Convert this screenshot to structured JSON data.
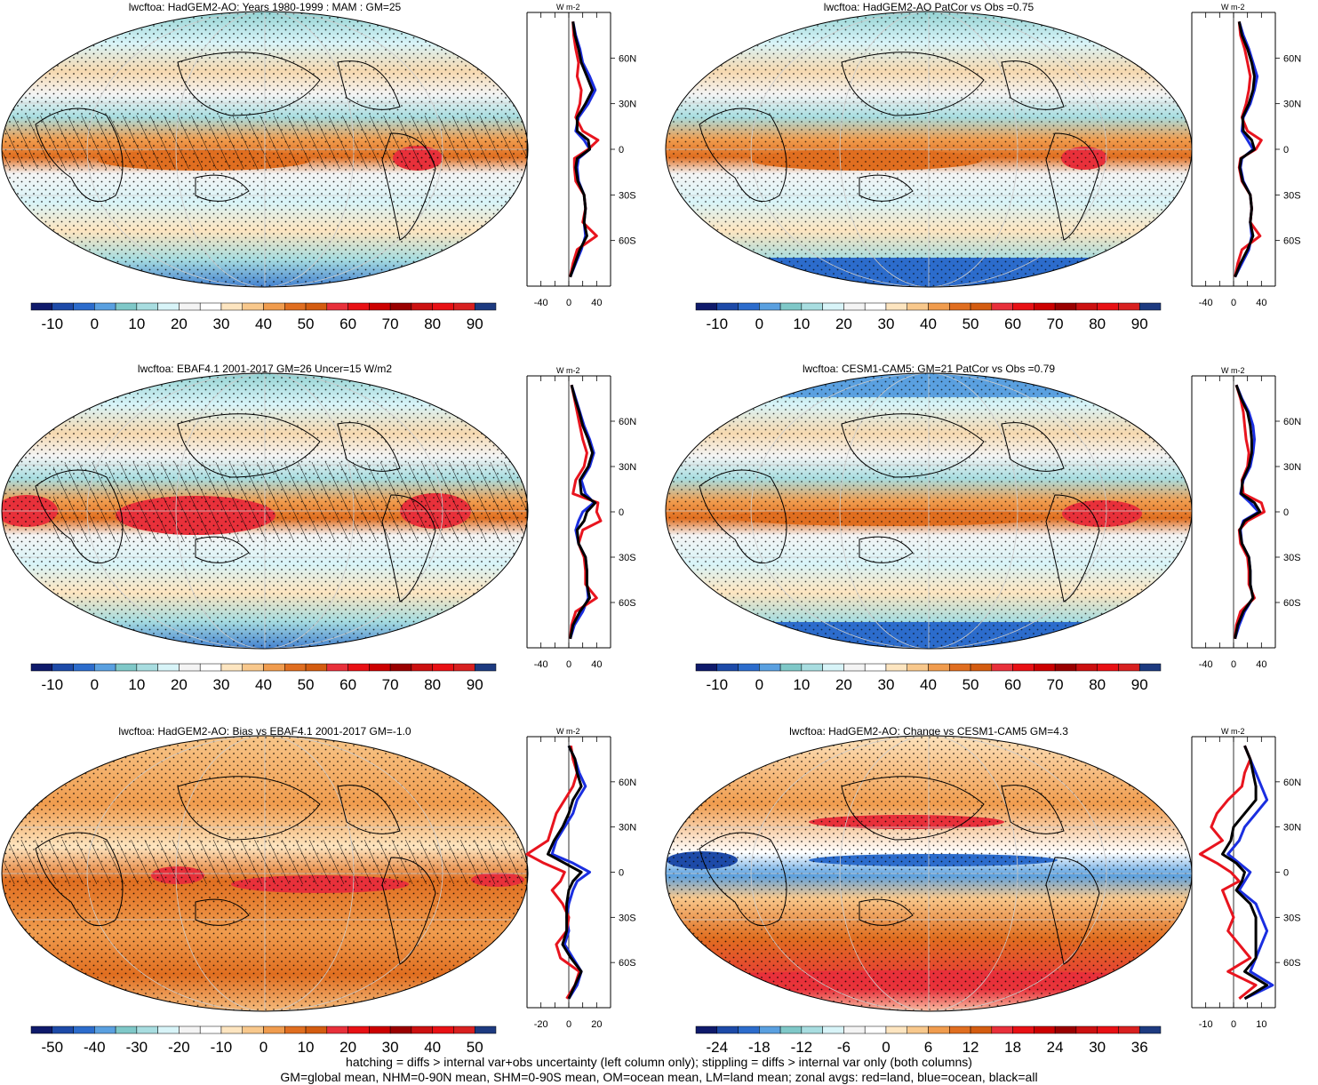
{
  "footnotes": {
    "line1": "hatching = diffs > internal var+obs uncertainty (left column only); stippling = diffs > internal var only (both columns)",
    "line2": "GM=global mean, NHM=0-90N mean, SHM=0-90S mean, OM=ocean mean, LM=land mean; zonal avgs: red=land, blue=ocean, black=all"
  },
  "colors": {
    "land": "#e8141e",
    "ocean": "#1a2ee0",
    "all": "#000000"
  },
  "chart_data": [
    {
      "type": "heatmap",
      "title": "lwcftoa: HadGEM2-AO: Years 1980-1999 : MAM : GM=25",
      "colorbar_ticks": [
        "-10",
        "0",
        "10",
        "20",
        "30",
        "40",
        "50",
        "60",
        "70",
        "80",
        "90"
      ],
      "colorbar_colors": [
        "#0f1a6b",
        "#1d4aa8",
        "#2c6ccc",
        "#5aa0e0",
        "#7fc8c8",
        "#a8dde0",
        "#d8f4f8",
        "#f4f4f4",
        "#ffffff",
        "#fde5c0",
        "#f8c88c",
        "#f09c4e",
        "#e06e20",
        "#d45c10",
        "#e8303a",
        "#e81014",
        "#cc0000",
        "#9a0000",
        "#cc1010",
        "#e81014",
        "#d82020",
        "#1d3a80"
      ],
      "profile": {
        "xlim": [
          -60,
          60
        ],
        "xticks": [
          "-40",
          "0",
          "40"
        ],
        "ylim": [
          -90,
          90
        ],
        "yticks": [
          "60N",
          "30N",
          "0",
          "30S",
          "60S"
        ],
        "units": "W m-2",
        "lat": [
          84,
          75,
          66,
          57,
          48,
          39,
          30,
          21,
          12,
          6,
          0,
          -6,
          -12,
          -21,
          -30,
          -39,
          -48,
          -57,
          -66,
          -75,
          -84
        ],
        "land": [
          6,
          7,
          10,
          14,
          12,
          18,
          16,
          10,
          20,
          42,
          28,
          8,
          8,
          10,
          22,
          24,
          20,
          40,
          12,
          6,
          2
        ],
        "ocean": [
          6,
          10,
          16,
          20,
          30,
          38,
          28,
          14,
          10,
          22,
          30,
          14,
          12,
          14,
          22,
          24,
          22,
          24,
          18,
          10,
          2
        ],
        "all": [
          6,
          9,
          14,
          18,
          26,
          34,
          24,
          12,
          12,
          28,
          30,
          12,
          10,
          13,
          22,
          24,
          22,
          26,
          16,
          9,
          2
        ]
      }
    },
    {
      "type": "heatmap",
      "title": "lwcftoa: HadGEM2-AO PatCor vs Obs =0.75",
      "colorbar_ticks": [
        "-10",
        "0",
        "10",
        "20",
        "30",
        "40",
        "50",
        "60",
        "70",
        "80",
        "90"
      ],
      "colorbar_colors": [
        "#0f1a6b",
        "#1d4aa8",
        "#2c6ccc",
        "#5aa0e0",
        "#7fc8c8",
        "#a8dde0",
        "#d8f4f8",
        "#f4f4f4",
        "#ffffff",
        "#fde5c0",
        "#f8c88c",
        "#f09c4e",
        "#e06e20",
        "#d45c10",
        "#e8303a",
        "#e81014",
        "#cc0000",
        "#9a0000",
        "#cc1010",
        "#e81014",
        "#d82020",
        "#1d3a80"
      ],
      "profile": {
        "xlim": [
          -60,
          60
        ],
        "xticks": [
          "-40",
          "0",
          "40"
        ],
        "ylim": [
          -90,
          90
        ],
        "yticks": [
          "60N",
          "30N",
          "0",
          "30S",
          "60S"
        ],
        "units": "W m-2",
        "lat": [
          84,
          75,
          66,
          57,
          48,
          39,
          30,
          21,
          12,
          6,
          0,
          -6,
          -12,
          -21,
          -30,
          -39,
          -48,
          -57,
          -66,
          -75,
          -84
        ],
        "land": [
          8,
          10,
          16,
          20,
          24,
          22,
          18,
          12,
          20,
          40,
          32,
          10,
          8,
          12,
          24,
          26,
          24,
          38,
          12,
          6,
          2
        ],
        "ocean": [
          8,
          14,
          22,
          28,
          34,
          30,
          24,
          14,
          12,
          20,
          28,
          12,
          10,
          14,
          24,
          26,
          24,
          26,
          22,
          12,
          2
        ],
        "all": [
          8,
          12,
          20,
          26,
          30,
          28,
          22,
          13,
          14,
          26,
          30,
          11,
          9,
          13,
          24,
          26,
          24,
          28,
          20,
          10,
          2
        ]
      }
    },
    {
      "type": "heatmap",
      "title": "lwcftoa: EBAF4.1 2001-2017 GM=26 Uncer=15 W/m2",
      "colorbar_ticks": [
        "-10",
        "0",
        "10",
        "20",
        "30",
        "40",
        "50",
        "60",
        "70",
        "80",
        "90"
      ],
      "colorbar_colors": [
        "#0f1a6b",
        "#1d4aa8",
        "#2c6ccc",
        "#5aa0e0",
        "#7fc8c8",
        "#a8dde0",
        "#d8f4f8",
        "#f4f4f4",
        "#ffffff",
        "#fde5c0",
        "#f8c88c",
        "#f09c4e",
        "#e06e20",
        "#d45c10",
        "#e8303a",
        "#e81014",
        "#cc0000",
        "#9a0000",
        "#cc1010",
        "#e81014",
        "#d82020",
        "#1d3a80"
      ],
      "profile": {
        "xlim": [
          -60,
          60
        ],
        "xticks": [
          "-40",
          "0",
          "40"
        ],
        "ylim": [
          -90,
          90
        ],
        "yticks": [
          "60N",
          "30N",
          "0",
          "30S",
          "60S"
        ],
        "units": "W m-2",
        "lat": [
          84,
          75,
          66,
          57,
          48,
          39,
          30,
          21,
          12,
          6,
          0,
          -6,
          -12,
          -21,
          -30,
          -39,
          -48,
          -57,
          -66,
          -75,
          -84
        ],
        "land": [
          4,
          8,
          12,
          16,
          20,
          26,
          22,
          10,
          6,
          42,
          40,
          46,
          20,
          14,
          22,
          24,
          24,
          40,
          10,
          4,
          2
        ],
        "ocean": [
          4,
          10,
          16,
          22,
          30,
          36,
          30,
          18,
          24,
          36,
          20,
          14,
          10,
          14,
          24,
          26,
          26,
          28,
          20,
          8,
          2
        ],
        "all": [
          4,
          9,
          15,
          20,
          28,
          34,
          28,
          16,
          18,
          38,
          26,
          22,
          12,
          14,
          24,
          26,
          26,
          30,
          16,
          6,
          2
        ]
      }
    },
    {
      "type": "heatmap",
      "title": "lwcftoa: CESM1-CAM5: GM=21 PatCor vs Obs =0.79",
      "colorbar_ticks": [
        "-10",
        "0",
        "10",
        "20",
        "30",
        "40",
        "50",
        "60",
        "70",
        "80",
        "90"
      ],
      "colorbar_colors": [
        "#0f1a6b",
        "#1d4aa8",
        "#2c6ccc",
        "#5aa0e0",
        "#7fc8c8",
        "#a8dde0",
        "#d8f4f8",
        "#f4f4f4",
        "#ffffff",
        "#fde5c0",
        "#f8c88c",
        "#f09c4e",
        "#e06e20",
        "#d45c10",
        "#e8303a",
        "#e81014",
        "#cc0000",
        "#9a0000",
        "#cc1010",
        "#e81014",
        "#d82020",
        "#1d3a80"
      ],
      "profile": {
        "xlim": [
          -60,
          60
        ],
        "xticks": [
          "-40",
          "0",
          "40"
        ],
        "ylim": [
          -90,
          90
        ],
        "yticks": [
          "60N",
          "30N",
          "0",
          "30S",
          "60S"
        ],
        "units": "W m-2",
        "lat": [
          84,
          75,
          66,
          57,
          48,
          39,
          30,
          21,
          12,
          6,
          0,
          -6,
          -12,
          -21,
          -30,
          -39,
          -48,
          -57,
          -66,
          -75,
          -84
        ],
        "land": [
          4,
          10,
          14,
          16,
          18,
          22,
          20,
          12,
          14,
          40,
          44,
          20,
          8,
          10,
          20,
          22,
          22,
          30,
          10,
          4,
          2
        ],
        "ocean": [
          4,
          12,
          22,
          28,
          30,
          28,
          24,
          14,
          10,
          24,
          36,
          14,
          10,
          12,
          22,
          24,
          24,
          28,
          16,
          8,
          2
        ],
        "all": [
          4,
          11,
          20,
          24,
          26,
          26,
          22,
          13,
          11,
          30,
          38,
          16,
          9,
          12,
          22,
          24,
          24,
          28,
          14,
          6,
          2
        ]
      }
    },
    {
      "type": "heatmap",
      "title": "lwcftoa: HadGEM2-AO: Bias vs EBAF4.1 2001-2017 GM=-1.0",
      "colorbar_ticks": [
        "-50",
        "-40",
        "-30",
        "-20",
        "-10",
        "0",
        "10",
        "20",
        "30",
        "40",
        "50"
      ],
      "colorbar_colors": [
        "#0f1a6b",
        "#1d4aa8",
        "#2c6ccc",
        "#5aa0e0",
        "#7fc8c8",
        "#a8dde0",
        "#d8f4f8",
        "#f4f4f4",
        "#ffffff",
        "#fde5c0",
        "#f8c88c",
        "#f09c4e",
        "#e06e20",
        "#d45c10",
        "#e8303a",
        "#e81014",
        "#cc0000",
        "#9a0000",
        "#cc1010",
        "#e81014",
        "#d82020",
        "#1d3a80"
      ],
      "profile": {
        "xlim": [
          -20,
          20
        ],
        "xticks": [
          "-20",
          "0",
          "20"
        ],
        "ylim": [
          -90,
          90
        ],
        "yticks": [
          "60N",
          "30N",
          "0",
          "30S",
          "60S"
        ],
        "units": "W m-2",
        "lat": [
          84,
          75,
          66,
          57,
          48,
          39,
          30,
          21,
          12,
          6,
          0,
          -6,
          -12,
          -21,
          -30,
          -39,
          -48,
          -57,
          -66,
          -75,
          -84
        ],
        "land": [
          1,
          2,
          4,
          2,
          -2,
          -6,
          -8,
          -10,
          -20,
          -12,
          -2,
          -4,
          -8,
          -3,
          0,
          -1,
          -6,
          -4,
          5,
          3,
          -1
        ],
        "ocean": [
          0,
          3,
          5,
          8,
          4,
          2,
          -2,
          -6,
          -8,
          2,
          10,
          4,
          2,
          0,
          -1,
          0,
          -2,
          2,
          6,
          4,
          0
        ],
        "all": [
          0,
          3,
          4,
          6,
          2,
          0,
          -3,
          -7,
          -10,
          -2,
          6,
          2,
          0,
          -1,
          -1,
          -1,
          -3,
          1,
          6,
          3,
          0
        ]
      }
    },
    {
      "type": "heatmap",
      "title": "lwcftoa: HadGEM2-AO: Change vs CESM1-CAM5 GM=4.3",
      "colorbar_ticks": [
        "-24",
        "-18",
        "-12",
        "-6",
        "0",
        "6",
        "12",
        "18",
        "24",
        "30",
        "36"
      ],
      "colorbar_colors": [
        "#0f1a6b",
        "#1d4aa8",
        "#2c6ccc",
        "#5aa0e0",
        "#7fc8c8",
        "#a8dde0",
        "#d8f4f8",
        "#f4f4f4",
        "#ffffff",
        "#fde5c0",
        "#f8c88c",
        "#f09c4e",
        "#e06e20",
        "#d45c10",
        "#e8303a",
        "#e81014",
        "#cc0000",
        "#9a0000",
        "#cc1010",
        "#e81014",
        "#d82020",
        "#1d3a80"
      ],
      "profile": {
        "xlim": [
          -15,
          15
        ],
        "xticks": [
          "-10",
          "0",
          "10"
        ],
        "ylim": [
          -90,
          90
        ],
        "yticks": [
          "60N",
          "30N",
          "0",
          "30S",
          "60S"
        ],
        "units": "W m-2",
        "lat": [
          84,
          75,
          66,
          57,
          48,
          39,
          30,
          21,
          12,
          6,
          0,
          -6,
          -12,
          -21,
          -30,
          -39,
          -48,
          -57,
          -66,
          -75,
          -84
        ],
        "land": [
          4,
          6,
          4,
          3,
          -2,
          -6,
          -8,
          -4,
          -12,
          -6,
          -1,
          2,
          -4,
          -2,
          0,
          -2,
          2,
          6,
          -2,
          8,
          2
        ],
        "ocean": [
          4,
          6,
          8,
          10,
          12,
          8,
          4,
          2,
          -2,
          2,
          6,
          4,
          2,
          8,
          10,
          12,
          10,
          8,
          6,
          14,
          4
        ],
        "all": [
          4,
          6,
          7,
          8,
          8,
          4,
          0,
          -1,
          -4,
          1,
          4,
          3,
          1,
          6,
          8,
          8,
          8,
          8,
          4,
          12,
          4
        ]
      }
    }
  ]
}
